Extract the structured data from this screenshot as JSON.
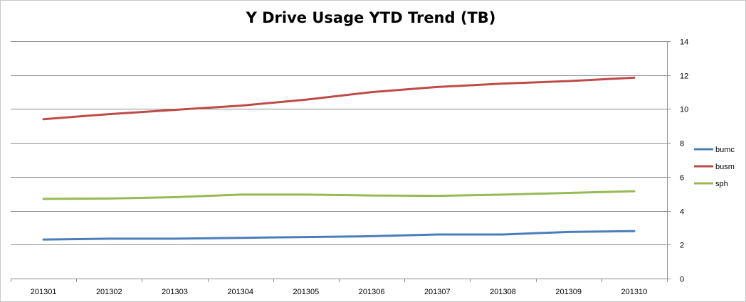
{
  "chart_data": {
    "type": "line",
    "title": "Y Drive Usage YTD Trend (TB)",
    "xlabel": "",
    "ylabel": "",
    "categories": [
      "201301",
      "201302",
      "201303",
      "201304",
      "201305",
      "201306",
      "201307",
      "201308",
      "201309",
      "201310"
    ],
    "ylim": [
      0,
      14
    ],
    "yticks": [
      0,
      2,
      4,
      6,
      8,
      10,
      12,
      14
    ],
    "y_axis_side": "right",
    "grid": true,
    "legend_position": "right",
    "series": [
      {
        "name": "bumc",
        "color": "#4a7ebb",
        "values": [
          2.3,
          2.35,
          2.35,
          2.4,
          2.45,
          2.5,
          2.6,
          2.6,
          2.75,
          2.8
        ]
      },
      {
        "name": "busm",
        "color": "#be4b48",
        "values": [
          9.4,
          9.7,
          9.95,
          10.2,
          10.55,
          11.0,
          11.3,
          11.5,
          11.65,
          11.85
        ]
      },
      {
        "name": "sph",
        "color": "#98b954",
        "values": [
          4.7,
          4.72,
          4.8,
          4.95,
          4.95,
          4.9,
          4.88,
          4.95,
          5.05,
          5.15
        ]
      }
    ]
  }
}
